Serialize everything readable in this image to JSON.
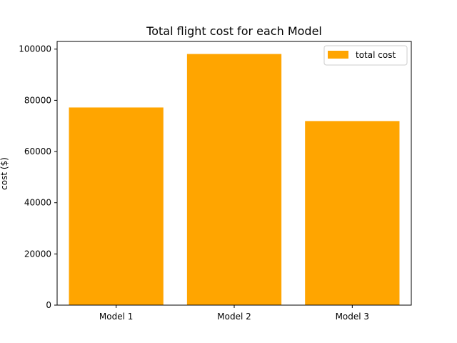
{
  "chart_data": {
    "type": "bar",
    "title": "Total flight cost for each Model",
    "xlabel": "",
    "ylabel": "cost ($)",
    "categories": [
      "Model 1",
      "Model 2",
      "Model 3"
    ],
    "series": [
      {
        "name": "total cost",
        "values": [
          77200,
          98100,
          71900
        ],
        "color": "#ffa500"
      }
    ],
    "ylim": [
      0,
      103000
    ],
    "yticks": [
      0,
      20000,
      40000,
      60000,
      80000,
      100000
    ],
    "ytick_labels": [
      "0",
      "20000",
      "40000",
      "60000",
      "80000",
      "100000"
    ],
    "grid": false,
    "legend_position": "top-right"
  }
}
